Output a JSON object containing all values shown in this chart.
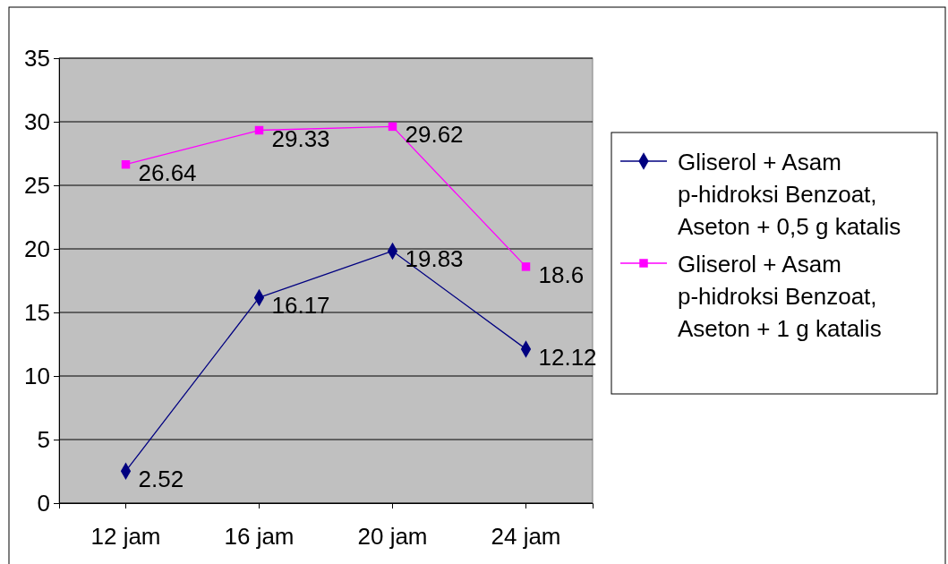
{
  "chart_data": {
    "type": "line",
    "categories": [
      "12 jam",
      "16 jam",
      "20 jam",
      "24 jam"
    ],
    "ylim": [
      0,
      35
    ],
    "yticks": [
      0,
      5,
      10,
      15,
      20,
      25,
      30,
      35
    ],
    "grid": "y",
    "legend": "right",
    "data_labels": true,
    "series": [
      {
        "name": "Gliserol + Asam p-hidroksi Benzoat, Aseton + 0,5 g katalis",
        "color": "#000080",
        "marker": "diamond",
        "values": [
          2.52,
          16.17,
          19.83,
          12.12
        ]
      },
      {
        "name": "Gliserol + Asam p-hidroksi Benzoat, Aseton + 1 g katalis",
        "color": "#ff00ff",
        "marker": "square",
        "values": [
          26.64,
          29.33,
          29.62,
          18.6
        ]
      }
    ]
  }
}
